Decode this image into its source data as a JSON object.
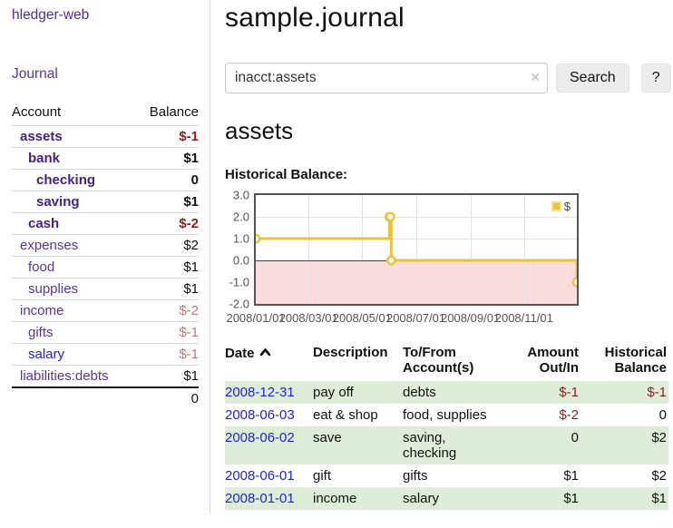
{
  "colors": {
    "link_visited": "#5a3696",
    "link_visited_strong": "#44227f",
    "link_unvisited": "#2323d0",
    "date_link": "#2122dc",
    "negative_strong": "#8f1f1f",
    "negative_soft": "#bd7b79",
    "row_shade_green": "#deedd8",
    "chart_line": "#e8c33f",
    "chart_negative_fill": "#fbdcdc",
    "chart_zero_line": "#9b1c1c",
    "chart_border": "#545454"
  },
  "sidebar": {
    "brand": "hledger-web",
    "nav_journal": "Journal",
    "accounts": {
      "col_account": "Account",
      "col_balance": "Balance",
      "rows": [
        {
          "name": "assets",
          "indent": 1,
          "style": "visited",
          "bold": true,
          "balance": "$-1",
          "balance_style": "neg"
        },
        {
          "name": "bank",
          "indent": 2,
          "style": "visited",
          "bold": true,
          "balance": "$1",
          "balance_style": "plain"
        },
        {
          "name": "checking",
          "indent": 3,
          "style": "visited",
          "bold": true,
          "balance": "0",
          "balance_style": "plain"
        },
        {
          "name": "saving",
          "indent": 3,
          "style": "visited",
          "bold": true,
          "balance": "$1",
          "balance_style": "plain"
        },
        {
          "name": "cash",
          "indent": 2,
          "style": "visited",
          "bold": true,
          "balance": "$-2",
          "balance_style": "neg"
        },
        {
          "name": "expenses",
          "indent": 1,
          "style": "visited",
          "bold": false,
          "balance": "$2",
          "balance_style": "plain"
        },
        {
          "name": "food",
          "indent": 2,
          "style": "visited",
          "bold": false,
          "balance": "$1",
          "balance_style": "plain"
        },
        {
          "name": "supplies",
          "indent": 2,
          "style": "visited",
          "bold": false,
          "balance": "$1",
          "balance_style": "plain"
        },
        {
          "name": "income",
          "indent": 1,
          "style": "visited",
          "bold": false,
          "balance": "$-2",
          "balance_style": "negsoft"
        },
        {
          "name": "gifts",
          "indent": 2,
          "style": "visited",
          "bold": false,
          "balance": "$-1",
          "balance_style": "negsoft"
        },
        {
          "name": "salary",
          "indent": 2,
          "style": "unvisited",
          "bold": false,
          "balance": "$-1",
          "balance_style": "negsoft"
        },
        {
          "name": "liabilities:debts",
          "indent": 1,
          "style": "visited",
          "bold": false,
          "balance": "$1",
          "balance_style": "plain"
        }
      ],
      "total": "0"
    }
  },
  "main": {
    "title": "sample.journal",
    "search": {
      "value": "inacct:assets",
      "clear": "×",
      "button": "Search",
      "help": "?"
    },
    "heading": "assets",
    "chart_title": "Historical Balance:",
    "register": {
      "headers": {
        "date": "Date",
        "description": "Description",
        "accounts": "To/From Account(s)",
        "amount": "Amount Out/In",
        "balance": "Historical Balance"
      },
      "sort": "ascending",
      "rows": [
        {
          "date": "2008-12-31",
          "description": "pay off",
          "accounts": "debts",
          "amount": "$-1",
          "amount_neg": true,
          "balance": "$-1",
          "balance_neg": true,
          "shaded": true
        },
        {
          "date": "2008-06-03",
          "description": "eat & shop",
          "accounts": "food, supplies",
          "amount": "$-2",
          "amount_neg": true,
          "balance": "0",
          "balance_neg": false,
          "shaded": false
        },
        {
          "date": "2008-06-02",
          "description": "save",
          "accounts": "saving, checking",
          "amount": "0",
          "amount_neg": false,
          "balance": "$2",
          "balance_neg": false,
          "shaded": true
        },
        {
          "date": "2008-06-01",
          "description": "gift",
          "accounts": "gifts",
          "amount": "$1",
          "amount_neg": false,
          "balance": "$2",
          "balance_neg": false,
          "shaded": false
        },
        {
          "date": "2008-01-01",
          "description": "income",
          "accounts": "salary",
          "amount": "$1",
          "amount_neg": false,
          "balance": "$1",
          "balance_neg": false,
          "shaded": true
        }
      ]
    }
  },
  "chart_data": {
    "type": "line",
    "title": "Historical Balance:",
    "steps": true,
    "legend": {
      "label": "$",
      "position": "top-right"
    },
    "xlim_days": [
      0,
      365
    ],
    "ylim": [
      -2,
      3
    ],
    "grid": true,
    "y_ticks": [
      {
        "v": 3,
        "label": "3.0"
      },
      {
        "v": 2,
        "label": "2.0"
      },
      {
        "v": 1,
        "label": "1.0"
      },
      {
        "v": 0,
        "label": "0.0"
      },
      {
        "v": -1,
        "label": "-1.0"
      },
      {
        "v": -2,
        "label": "-2.0"
      }
    ],
    "x_ticks": [
      {
        "d": 0,
        "label": "2008/01/01"
      },
      {
        "d": 60,
        "label": "2008/03/01"
      },
      {
        "d": 121,
        "label": "2008/05/01"
      },
      {
        "d": 182,
        "label": "2008/07/01"
      },
      {
        "d": 244,
        "label": "2008/09/01"
      },
      {
        "d": 305,
        "label": "2008/11/01"
      }
    ],
    "series": [
      {
        "name": "$",
        "color": "#e8c33f",
        "points": [
          {
            "date": "2008-01-01",
            "d": 0,
            "v": 1
          },
          {
            "date": "2008-06-01",
            "d": 152,
            "v": 2
          },
          {
            "date": "2008-06-02",
            "d": 153,
            "v": 2
          },
          {
            "date": "2008-06-03",
            "d": 154,
            "v": 0
          },
          {
            "date": "2008-12-31",
            "d": 365,
            "v": -1
          }
        ]
      }
    ]
  }
}
